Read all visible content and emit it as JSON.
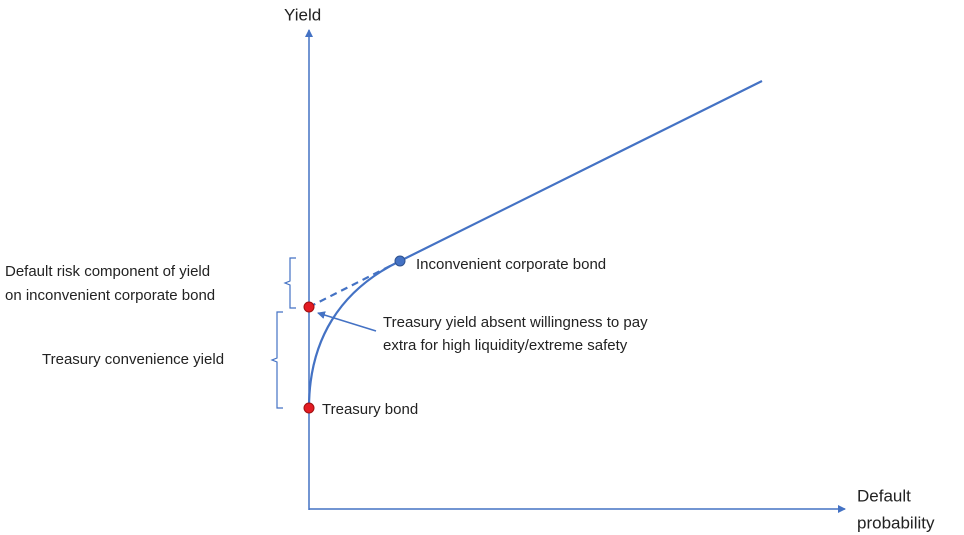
{
  "axes": {
    "y_label": "Yield",
    "x_label": [
      "Default",
      "probability"
    ]
  },
  "brackets": {
    "default_risk": [
      "Default risk component of yield",
      "on inconvenient corporate bond"
    ],
    "convenience": "Treasury convenience yield"
  },
  "points": {
    "corporate": "Inconvenient corporate bond",
    "treasury": "Treasury bond"
  },
  "annotation": [
    "Treasury yield absent willingness to pay",
    "extra for high liquidity/extreme safety"
  ]
}
